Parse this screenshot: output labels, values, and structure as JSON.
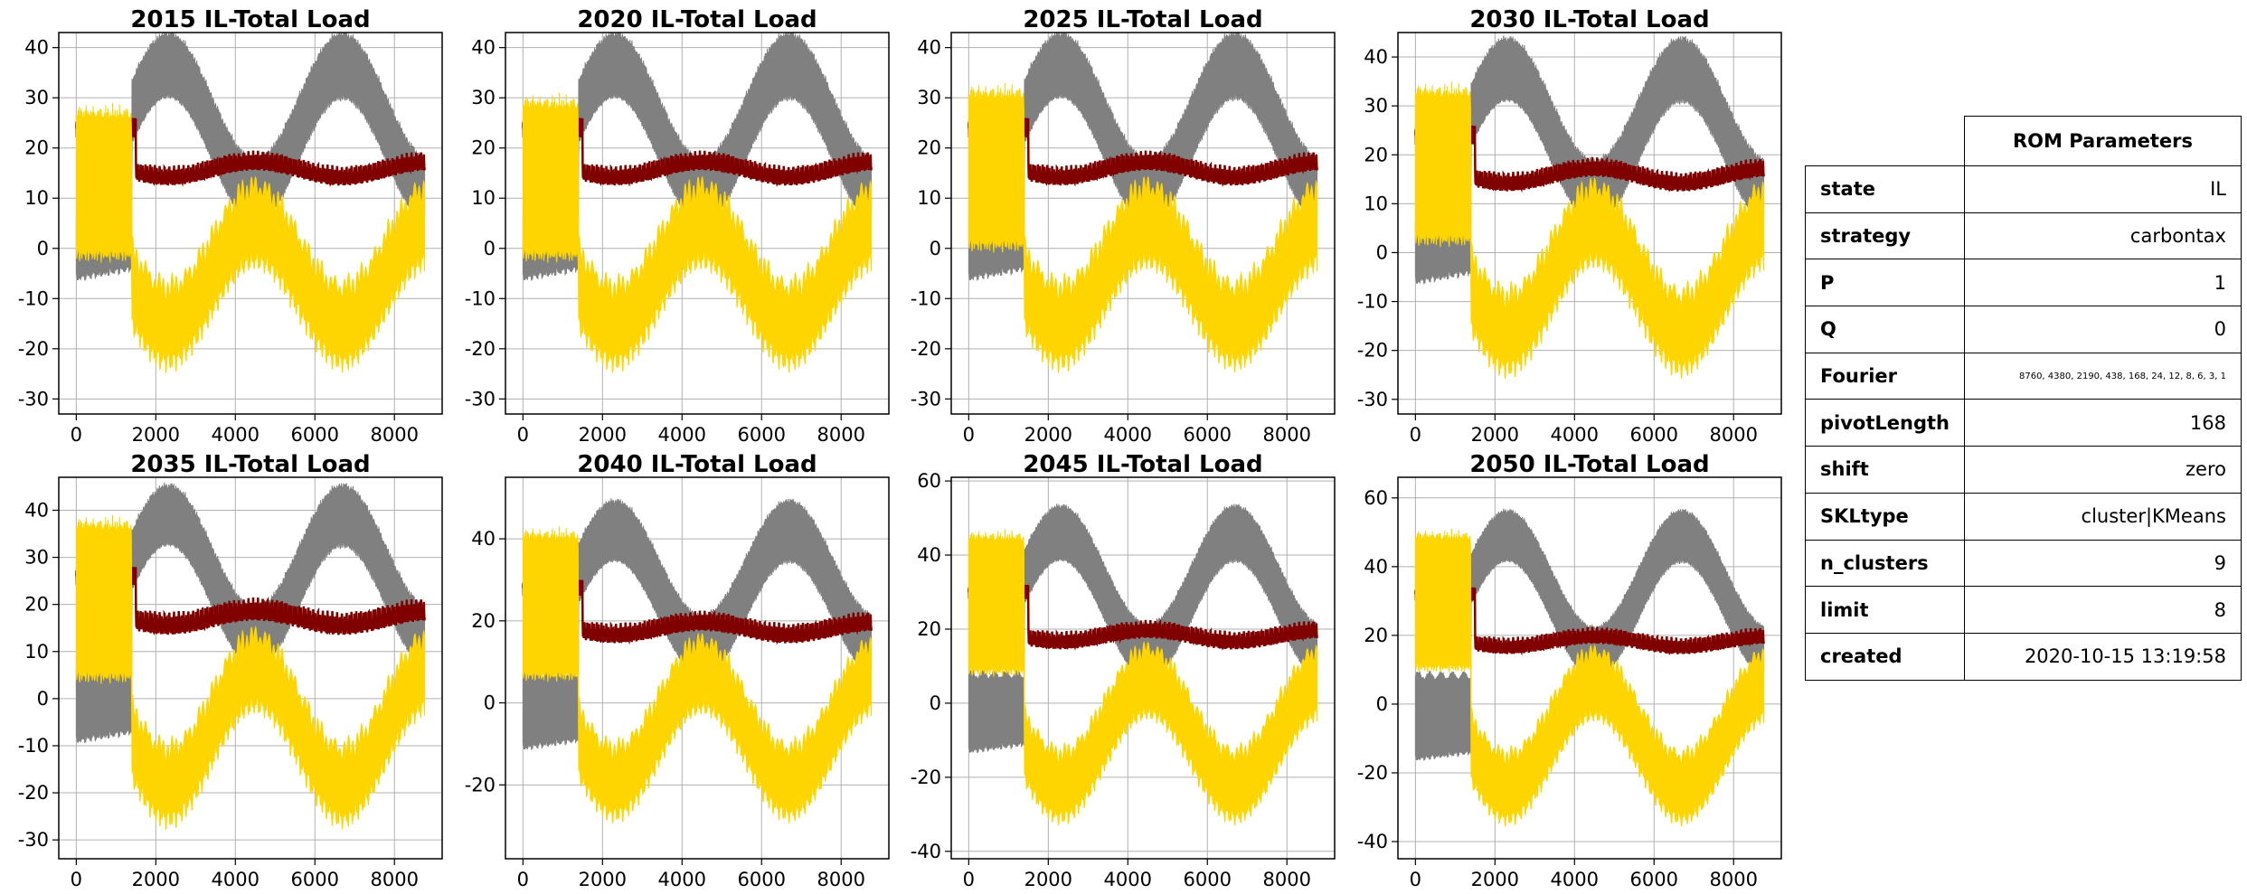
{
  "colors": {
    "gray": "#808080",
    "darkred": "#800000",
    "gold": "#ffd500",
    "grid": "#b0b0b0"
  },
  "chart_data": [
    {
      "type": "area",
      "title": "2015 IL-Total Load",
      "xticks": [
        0,
        2000,
        4000,
        6000,
        8000
      ],
      "yticks": [
        -30,
        -20,
        -10,
        0,
        10,
        20,
        30,
        40
      ],
      "ylim": [
        -33,
        43
      ],
      "xlim": [
        -440,
        9200
      ],
      "gray": {
        "c": 24,
        "a": 12.5,
        "w": 6,
        "lowStart": -5
      },
      "red": {
        "c": 14,
        "a": 4,
        "hi": 24
      },
      "gold": {
        "c": -5,
        "a": 10,
        "w": 12,
        "early": [
          8,
          26
        ]
      }
    },
    {
      "type": "area",
      "title": "2020 IL-Total Load",
      "xticks": [
        0,
        2000,
        4000,
        6000,
        8000
      ],
      "yticks": [
        -30,
        -20,
        -10,
        0,
        10,
        20,
        30,
        40
      ],
      "ylim": [
        -33,
        43
      ],
      "xlim": [
        -440,
        9200
      ],
      "gray": {
        "c": 24,
        "a": 12.5,
        "w": 6,
        "lowStart": -5
      },
      "red": {
        "c": 14,
        "a": 4,
        "hi": 24
      },
      "gold": {
        "c": -5,
        "a": 10,
        "w": 12,
        "early": [
          8,
          28
        ]
      }
    },
    {
      "type": "area",
      "title": "2025 IL-Total Load",
      "xticks": [
        0,
        2000,
        4000,
        6000,
        8000
      ],
      "yticks": [
        -30,
        -20,
        -10,
        0,
        10,
        20,
        30,
        40
      ],
      "ylim": [
        -33,
        43
      ],
      "xlim": [
        -440,
        9200
      ],
      "gray": {
        "c": 24,
        "a": 12.5,
        "w": 6,
        "lowStart": -5
      },
      "red": {
        "c": 14,
        "a": 4,
        "hi": 24
      },
      "gold": {
        "c": -5,
        "a": 10,
        "w": 12,
        "early": [
          10,
          30
        ]
      }
    },
    {
      "type": "area",
      "title": "2030 IL-Total Load",
      "xticks": [
        0,
        2000,
        4000,
        6000,
        8000
      ],
      "yticks": [
        -30,
        -20,
        -10,
        0,
        10,
        20,
        30,
        40
      ],
      "ylim": [
        -33,
        45
      ],
      "xlim": [
        -440,
        9200
      ],
      "gray": {
        "c": 25,
        "a": 12.5,
        "w": 6,
        "lowStart": -5
      },
      "red": {
        "c": 14,
        "a": 4,
        "hi": 24
      },
      "gold": {
        "c": -5,
        "a": 11,
        "w": 12,
        "early": [
          12,
          32
        ]
      }
    },
    {
      "type": "area",
      "title": "2035 IL-Total Load",
      "xticks": [
        0,
        2000,
        4000,
        6000,
        8000
      ],
      "yticks": [
        -30,
        -20,
        -10,
        0,
        10,
        20,
        30,
        40
      ],
      "ylim": [
        -34,
        47
      ],
      "xlim": [
        -440,
        9200
      ],
      "gray": {
        "c": 26,
        "a": 13,
        "w": 6,
        "lowStart": -8
      },
      "red": {
        "c": 15,
        "a": 5,
        "hi": 26
      },
      "gold": {
        "c": -6,
        "a": 12,
        "w": 12,
        "early": [
          14,
          36
        ]
      }
    },
    {
      "type": "area",
      "title": "2040 IL-Total Load",
      "xticks": [
        0,
        2000,
        4000,
        6000,
        8000
      ],
      "yticks": [
        -20,
        0,
        20,
        40
      ],
      "ylim": [
        -38,
        55
      ],
      "xlim": [
        -440,
        9200
      ],
      "gray": {
        "c": 28,
        "a": 14,
        "w": 7,
        "lowStart": -10
      },
      "red": {
        "c": 16,
        "a": 5,
        "hi": 28
      },
      "gold": {
        "c": -6,
        "a": 13,
        "w": 13,
        "early": [
          16,
          40
        ]
      }
    },
    {
      "type": "area",
      "title": "2045 IL-Total Load",
      "xticks": [
        0,
        2000,
        4000,
        6000,
        8000
      ],
      "yticks": [
        -40,
        -20,
        0,
        20,
        40,
        60
      ],
      "ylim": [
        -42,
        61
      ],
      "xlim": [
        -440,
        9200
      ],
      "gray": {
        "c": 30,
        "a": 16,
        "w": 7,
        "lowStart": -12
      },
      "red": {
        "c": 16,
        "a": 5,
        "hi": 30
      },
      "gold": {
        "c": -8,
        "a": 14,
        "w": 14,
        "early": [
          18,
          44
        ]
      }
    },
    {
      "type": "area",
      "title": "2050 IL-Total Load",
      "xticks": [
        0,
        2000,
        4000,
        6000,
        8000
      ],
      "yticks": [
        -40,
        -20,
        0,
        20,
        40,
        60
      ],
      "ylim": [
        -45,
        66
      ],
      "xlim": [
        -440,
        9200
      ],
      "gray": {
        "c": 32,
        "a": 17,
        "w": 7,
        "lowStart": -15
      },
      "red": {
        "c": 16,
        "a": 5,
        "hi": 32
      },
      "gold": {
        "c": -9,
        "a": 15,
        "w": 15,
        "early": [
          20,
          48
        ]
      }
    }
  ],
  "table": {
    "header": "ROM Parameters",
    "rows": [
      {
        "key": "state",
        "value": "IL"
      },
      {
        "key": "strategy",
        "value": "carbontax"
      },
      {
        "key": "P",
        "value": "1"
      },
      {
        "key": "Q",
        "value": "0"
      },
      {
        "key": "Fourier",
        "value": "8760, 4380, 2190, 438, 168, 24, 12, 8, 6, 3, 1"
      },
      {
        "key": "pivotLength",
        "value": "168"
      },
      {
        "key": "shift",
        "value": "zero"
      },
      {
        "key": "SKLtype",
        "value": "cluster|KMeans"
      },
      {
        "key": "n_clusters",
        "value": "9"
      },
      {
        "key": "limit",
        "value": "8"
      },
      {
        "key": "created",
        "value": "2020-10-15 13:19:58"
      }
    ]
  }
}
